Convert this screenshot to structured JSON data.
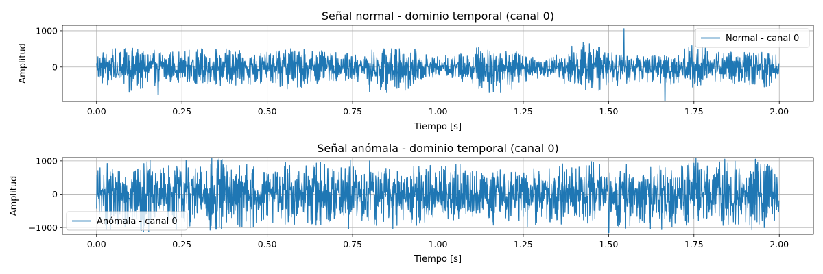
{
  "chart_data": [
    {
      "type": "line",
      "title": "Señal normal - dominio temporal (canal 0)",
      "xlabel": "Tiempo [s]",
      "ylabel": "Amplitud",
      "xlim": [
        -0.1,
        2.1
      ],
      "ylim": [
        -950,
        1150
      ],
      "xticks": [
        0.0,
        0.25,
        0.5,
        0.75,
        1.0,
        1.25,
        1.5,
        1.75,
        2.0
      ],
      "xtick_labels": [
        "0.00",
        "0.25",
        "0.50",
        "0.75",
        "1.00",
        "1.25",
        "1.50",
        "1.75",
        "2.00"
      ],
      "yticks": [
        0,
        1000
      ],
      "ytick_labels": [
        "0",
        "1000"
      ],
      "grid": true,
      "legend_position": "upper right",
      "series": [
        {
          "name": "Normal - canal 0",
          "color": "#1f77b4",
          "x_range": [
            0,
            2
          ],
          "amplitude_envelope": [
            -700,
            650
          ],
          "peaks": [
            [
              1.545,
              1060
            ],
            [
              1.665,
              -930
            ],
            [
              0.18,
              -760
            ],
            [
              0.8,
              -680
            ]
          ]
        }
      ]
    },
    {
      "type": "line",
      "title": "Señal anómala - dominio temporal (canal 0)",
      "xlabel": "Tiempo [s]",
      "ylabel": "Amplitud",
      "xlim": [
        -0.1,
        2.1
      ],
      "ylim": [
        -1200,
        1100
      ],
      "xticks": [
        0.0,
        0.25,
        0.5,
        0.75,
        1.0,
        1.25,
        1.5,
        1.75,
        2.0
      ],
      "xtick_labels": [
        "0.00",
        "0.25",
        "0.50",
        "0.75",
        "1.00",
        "1.25",
        "1.50",
        "1.75",
        "2.00"
      ],
      "yticks": [
        -1000,
        0,
        1000
      ],
      "ytick_labels": [
        "−1000",
        "0",
        "1000"
      ],
      "grid": true,
      "legend_position": "lower left",
      "series": [
        {
          "name": "Anómala - canal 0",
          "color": "#1f77b4",
          "x_range": [
            0,
            2
          ],
          "amplitude_envelope": [
            -1100,
            1000
          ],
          "peaks": [
            [
              1.5,
              -1150
            ],
            [
              1.93,
              1050
            ],
            [
              0.8,
              1000
            ],
            [
              0.35,
              -1050
            ]
          ]
        }
      ]
    }
  ]
}
